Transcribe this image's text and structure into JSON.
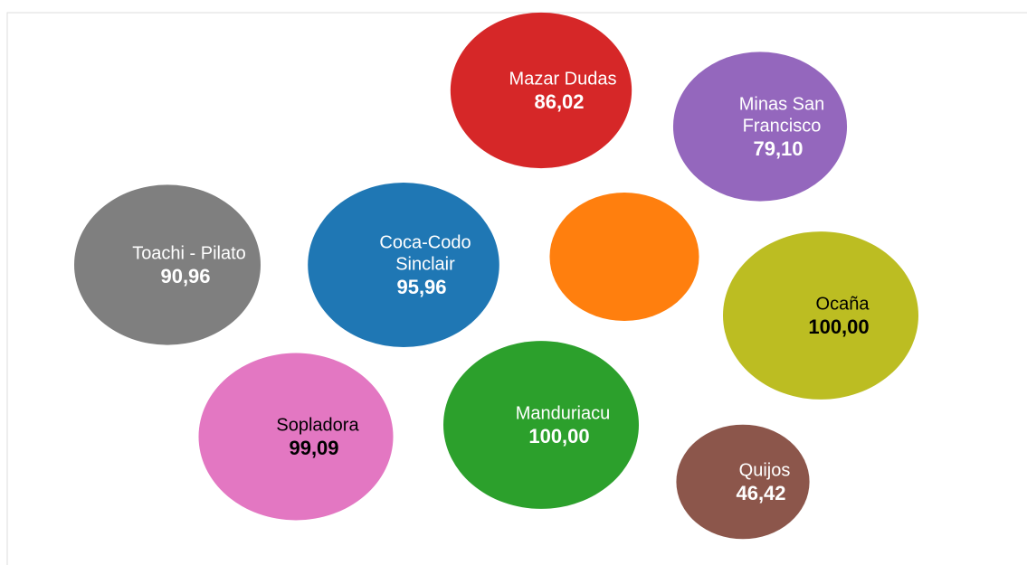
{
  "chart_data": {
    "type": "bubble",
    "categories": [
      [
        "Mazar Dudas"
      ],
      [
        "Minas San",
        "Francisco"
      ],
      [
        "Toachi - Pilato"
      ],
      [
        "Coca-Codo",
        "Sinclair"
      ],
      null,
      [
        "Ocaña"
      ],
      [
        "Sopladora"
      ],
      [
        "Manduriacu"
      ],
      [
        "Quijos"
      ]
    ],
    "values": [
      86.02,
      79.1,
      90.96,
      95.96,
      58.4,
      100.0,
      99.09,
      100.0,
      46.42
    ],
    "value_labels": [
      "86,02",
      "79,10",
      "90,96",
      "95,96",
      null,
      "100,00",
      "99,09",
      "100,00",
      "46,42"
    ],
    "colors": [
      "#d62728",
      "#9467bd",
      "#7f7f7f",
      "#1f77b4",
      "#ff7f0e",
      "#bcbd22",
      "#e377c2",
      "#2ca02c",
      "#8c564b"
    ],
    "label_colors": [
      "#ffffff",
      "#ffffff",
      "#ffffff",
      "#ffffff",
      "#ffffff",
      "#000000",
      "#000000",
      "#ffffff",
      "#ffffff"
    ]
  }
}
